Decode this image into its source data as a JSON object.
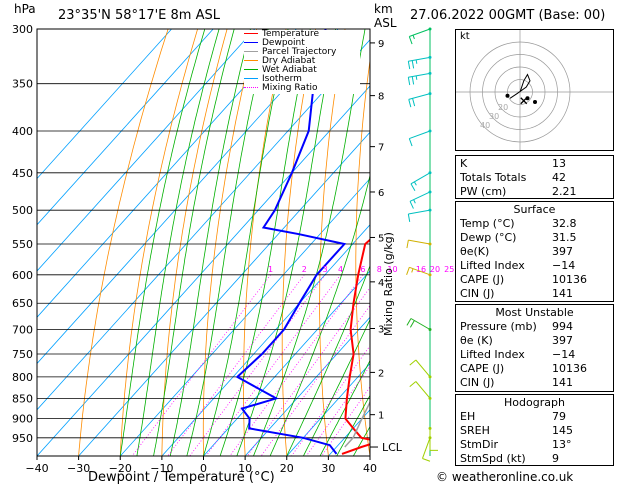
{
  "header": {
    "pressure_unit": "hPa",
    "location": "23°35'N  58°17'E  8m  ASL",
    "height_unit": "km",
    "height_unit2": "ASL",
    "datetime": "27.06.2022  00GMT  (Base: 00)"
  },
  "legend": {
    "items": [
      {
        "label": "Temperature",
        "color": "#ff0000",
        "dash": "solid"
      },
      {
        "label": "Dewpoint",
        "color": "#0000ff",
        "dash": "solid"
      },
      {
        "label": "Parcel Trajectory",
        "color": "#a0a0a0",
        "dash": "solid"
      },
      {
        "label": "Dry Adiabat",
        "color": "#ff8c00",
        "dash": "solid"
      },
      {
        "label": "Wet Adiabat",
        "color": "#00b000",
        "dash": "solid"
      },
      {
        "label": "Isotherm",
        "color": "#00a0ff",
        "dash": "solid"
      },
      {
        "label": "Mixing Ratio",
        "color": "#ff00ff",
        "dash": "dotted"
      }
    ]
  },
  "chart_data": {
    "type": "line",
    "xlabel": "Dewpoint / Temperature (°C)",
    "y2label": "Mixing Ratio (g/kg)",
    "xlim": [
      -40,
      40
    ],
    "ylim_hpa": [
      300,
      1000
    ],
    "x_ticks": [
      -40,
      -30,
      -20,
      -10,
      0,
      10,
      20,
      30,
      40
    ],
    "x_tick_labels": [
      "−40",
      "−30",
      "−20",
      "−10",
      "0",
      "10",
      "20",
      "30",
      "40"
    ],
    "p_ticks": [
      300,
      350,
      400,
      450,
      500,
      550,
      600,
      650,
      700,
      750,
      800,
      850,
      900,
      950
    ],
    "p_tick_labels": [
      "300",
      "350",
      "400",
      "450",
      "500",
      "550",
      "600",
      "650",
      "700",
      "750",
      "800",
      "850",
      "900",
      "950"
    ],
    "km_ticks": [
      {
        "p": 312,
        "label": "9"
      },
      {
        "p": 362,
        "label": "8"
      },
      {
        "p": 418,
        "label": "7"
      },
      {
        "p": 475,
        "label": "6"
      },
      {
        "p": 540,
        "label": "5"
      },
      {
        "p": 612,
        "label": "4"
      },
      {
        "p": 698,
        "label": "3"
      },
      {
        "p": 790,
        "label": "2"
      },
      {
        "p": 890,
        "label": "1"
      }
    ],
    "lcl": {
      "p": 975,
      "label": "LCL"
    },
    "mixing_ratio_labels": [
      "1",
      "2",
      "3",
      "4",
      "6",
      "8",
      "10",
      "16",
      "20",
      "25"
    ],
    "mixing_ratio_values": [
      1,
      2,
      3,
      4,
      6,
      8,
      10,
      16,
      20,
      25
    ],
    "series": [
      {
        "name": "Temperature",
        "color": "#ff0000",
        "p": [
          300,
          350,
          400,
          450,
          500,
          525,
          550,
          600,
          650,
          700,
          750,
          800,
          850,
          900,
          925,
          950,
          960,
          975,
          994
        ],
        "t": [
          -36,
          -30,
          -23,
          -15,
          -7,
          -6,
          -7,
          -2,
          3,
          8,
          14,
          18,
          22,
          26,
          30,
          34,
          39,
          36,
          32.8
        ]
      },
      {
        "name": "Dewpoint",
        "color": "#0000ff",
        "p": [
          300,
          350,
          400,
          450,
          500,
          525,
          535,
          550,
          600,
          650,
          700,
          750,
          800,
          850,
          875,
          900,
          925,
          950,
          970,
          994
        ],
        "t": [
          -63,
          -54,
          -45,
          -40,
          -36,
          -35,
          -25,
          -12,
          -12,
          -10,
          -8,
          -8,
          -9,
          5,
          -1,
          3,
          5,
          20,
          28,
          31.5
        ]
      },
      {
        "name": "Parcel Trajectory",
        "color": "#a0a0a0",
        "p": [
          370,
          400,
          450,
          500,
          550,
          600,
          650,
          700,
          750,
          800,
          850,
          900,
          950,
          975
        ],
        "t": [
          -13,
          -8,
          -1,
          5,
          10,
          14,
          18,
          21,
          24,
          26,
          28,
          30,
          32,
          32
        ]
      }
    ]
  },
  "hodograph": {
    "label": "kt",
    "rings": [
      10,
      20,
      30,
      40
    ],
    "ring_labels": [
      "40",
      "30",
      "20"
    ],
    "points": [
      [
        0,
        0
      ],
      [
        1,
        3
      ],
      [
        3,
        9
      ],
      [
        6,
        14
      ],
      [
        8,
        9
      ],
      [
        5,
        4
      ],
      [
        -2,
        -1
      ],
      [
        -8,
        -5
      ]
    ],
    "storm": [
      3,
      -7
    ],
    "marks": [
      [
        -10,
        -3
      ],
      [
        6,
        -5
      ],
      [
        12,
        -8
      ]
    ]
  },
  "winds": [
    {
      "p": 300,
      "color": "#00c060",
      "dir": 250,
      "spd": 15
    },
    {
      "p": 325,
      "color": "#00c0c0",
      "dir": 260,
      "spd": 25
    },
    {
      "p": 340,
      "color": "#00c0c0",
      "dir": 260,
      "spd": 25
    },
    {
      "p": 360,
      "color": "#00c0c0",
      "dir": 255,
      "spd": 20
    },
    {
      "p": 400,
      "color": "#00c0c0",
      "dir": 250,
      "spd": 10
    },
    {
      "p": 450,
      "color": "#00c0c0",
      "dir": 240,
      "spd": 15
    },
    {
      "p": 475,
      "color": "#00c0c0",
      "dir": 245,
      "spd": 15
    },
    {
      "p": 500,
      "color": "#00c0c0",
      "dir": 260,
      "spd": 10
    },
    {
      "p": 550,
      "color": "#d0b000",
      "dir": 280,
      "spd": 10
    },
    {
      "p": 600,
      "color": "#d0b000",
      "dir": 290,
      "spd": 15
    },
    {
      "p": 700,
      "color": "#20b020",
      "dir": 300,
      "spd": 20
    },
    {
      "p": 800,
      "color": "#a0d000",
      "dir": 320,
      "spd": 10
    },
    {
      "p": 850,
      "color": "#a0d000",
      "dir": 320,
      "spd": 10
    },
    {
      "p": 925,
      "color": "#a0d000",
      "dir": 180,
      "spd": 10
    },
    {
      "p": 950,
      "color": "#a0d000",
      "dir": 200,
      "spd": 10
    }
  ],
  "indices": {
    "rows": [
      {
        "label": "K",
        "value": "13"
      },
      {
        "label": "Totals Totals",
        "value": "42"
      },
      {
        "label": "PW (cm)",
        "value": "2.21"
      }
    ]
  },
  "surface": {
    "title": "Surface",
    "rows": [
      {
        "label": "Temp (°C)",
        "value": "32.8"
      },
      {
        "label": "Dewp (°C)",
        "value": "31.5"
      },
      {
        "label": "θe(K)",
        "value": "397"
      },
      {
        "label": "Lifted Index",
        "value": "−14"
      },
      {
        "label": "CAPE (J)",
        "value": "10136"
      },
      {
        "label": "CIN (J)",
        "value": "141"
      }
    ]
  },
  "most_unstable": {
    "title": "Most Unstable",
    "rows": [
      {
        "label": "Pressure (mb)",
        "value": "994"
      },
      {
        "label": "θe (K)",
        "value": "397"
      },
      {
        "label": "Lifted Index",
        "value": "−14"
      },
      {
        "label": "CAPE (J)",
        "value": "10136"
      },
      {
        "label": "CIN (J)",
        "value": "141"
      }
    ]
  },
  "hodograph_table": {
    "title": "Hodograph",
    "rows": [
      {
        "label": "EH",
        "value": "79"
      },
      {
        "label": "SREH",
        "value": "145"
      },
      {
        "label": "StmDir",
        "value": "13°"
      },
      {
        "label": "StmSpd (kt)",
        "value": "9"
      }
    ]
  },
  "footer": {
    "copyright": "© weatheronline.co.uk"
  }
}
